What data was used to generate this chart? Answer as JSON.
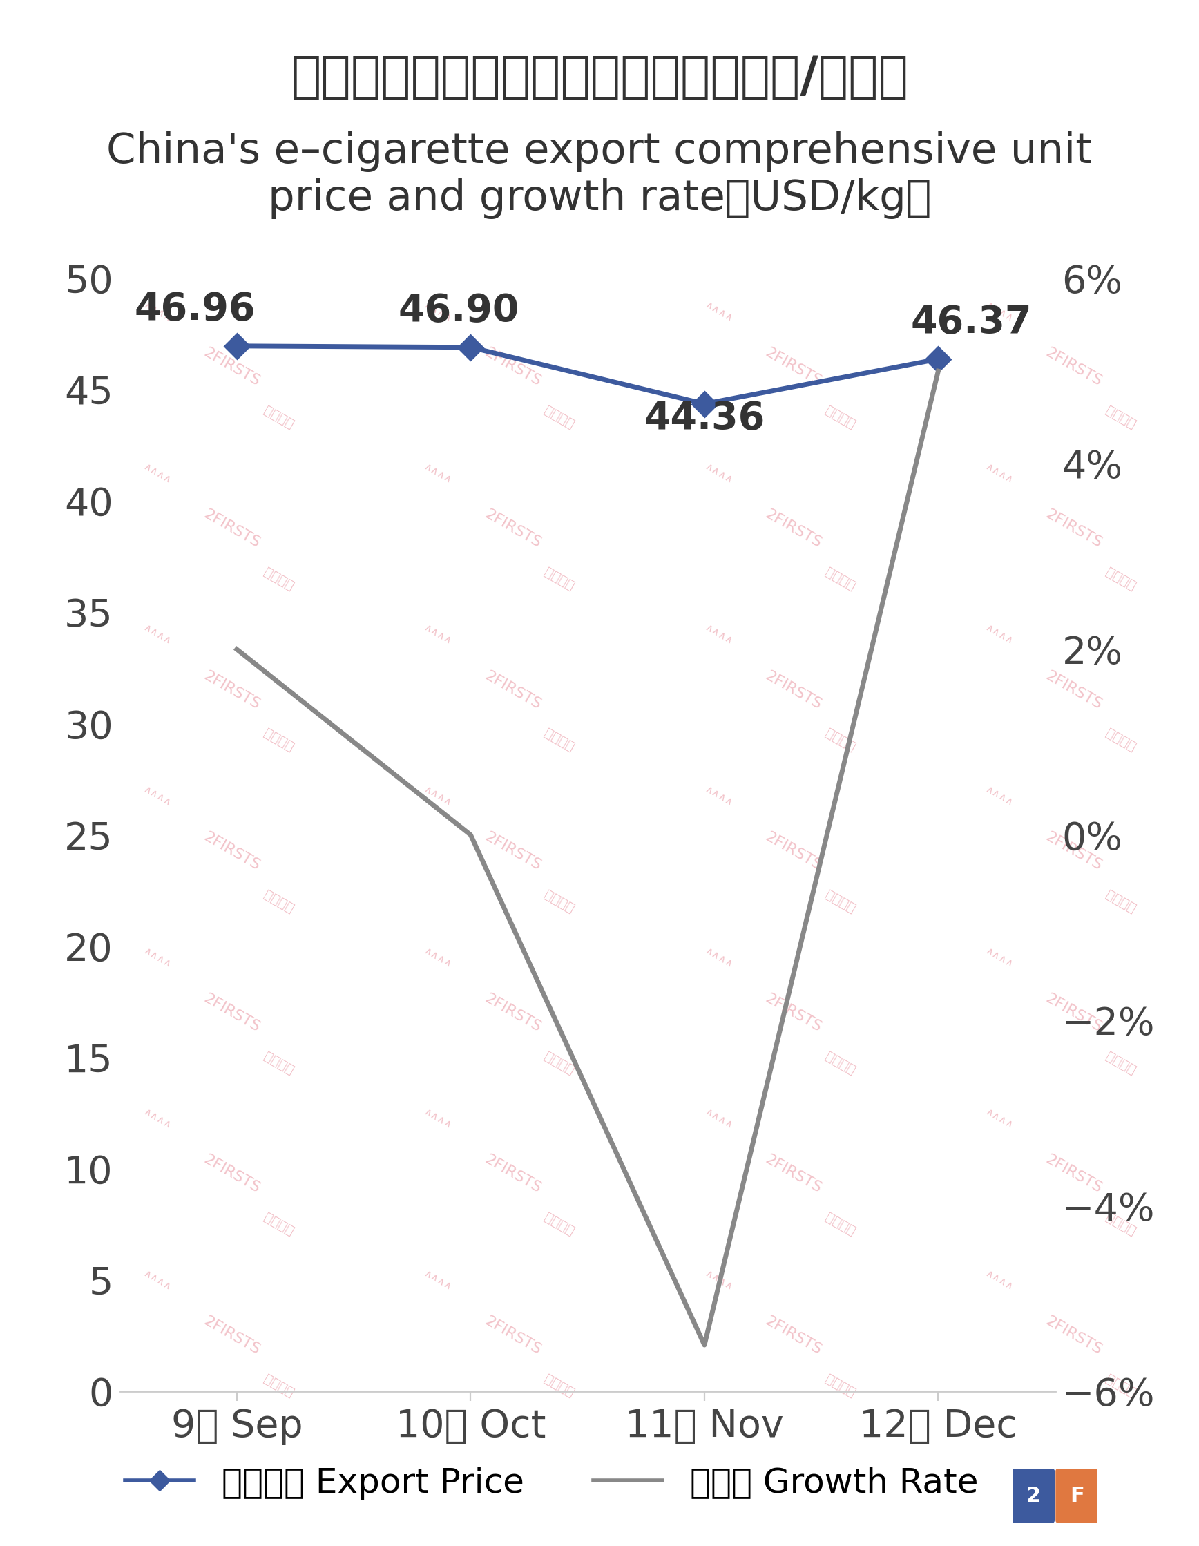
{
  "title_cn": "中国电子烟出口综合单价及增速（美元/千克）",
  "title_en": "China's e–cigarette export comprehensive unit\nprice and growth rate（USD/kg）",
  "categories": [
    "9月 Sep",
    "10月 Oct",
    "11月 Nov",
    "12月 Dec"
  ],
  "export_price": [
    46.96,
    46.9,
    44.36,
    46.37
  ],
  "growth_rate": [
    0.02,
    0.0,
    -0.055,
    0.05
  ],
  "left_ylim": [
    0,
    50
  ],
  "left_yticks": [
    0,
    5,
    10,
    15,
    20,
    25,
    30,
    35,
    40,
    45,
    50
  ],
  "right_ylim": [
    -0.06,
    0.06
  ],
  "right_yticks": [
    -0.06,
    -0.04,
    -0.02,
    0.0,
    0.02,
    0.04,
    0.06
  ],
  "right_yticklabels": [
    "−6%",
    "−4%",
    "−2%",
    "0%",
    "2%",
    "4%",
    "6%"
  ],
  "price_color": "#3d5a9e",
  "growth_color": "#888888",
  "price_linewidth": 2.5,
  "growth_linewidth": 2.5,
  "price_marker": "D",
  "price_markersize": 9,
  "price_label": "出口单价 Export Price",
  "growth_label": "增长率 Growth Rate",
  "watermark_line1": "2FIRSTS",
  "watermark_line2": "两个至上",
  "background_color": "#ffffff",
  "tick_fontsize": 20,
  "title_cn_fontsize": 26,
  "title_en_fontsize": 22,
  "annotation_fontsize": 20,
  "legend_fontsize": 18,
  "logo_color1": "#3d5a9e",
  "logo_color2": "#e07840"
}
